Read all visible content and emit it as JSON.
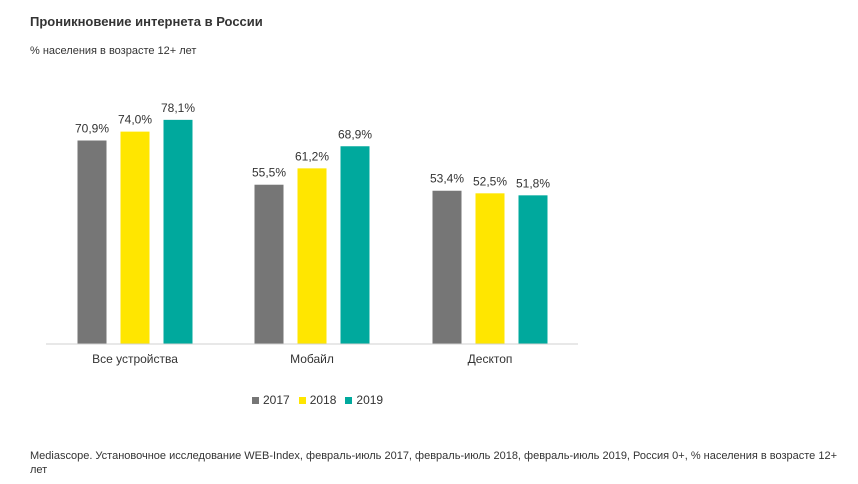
{
  "title": "Проникновение интернета в России",
  "subtitle": "% населения в возрасте 12+ лет",
  "source": "Mediascope. Установочное исследование WEB-Index, февраль-июль 2017, февраль-июль 2018, февраль-июль 2019, Россия 0+, % населения в возрасте 12+ лет",
  "chart_data": {
    "type": "bar",
    "categories": [
      "Все устройства",
      "Мобайл",
      "Десктоп"
    ],
    "series": [
      {
        "name": "2017",
        "color": "#767676",
        "values": [
          70.9,
          55.5,
          53.4
        ],
        "labels": [
          "70,9%",
          "55,5%",
          "53,4%"
        ]
      },
      {
        "name": "2018",
        "color": "#FFE600",
        "values": [
          74.0,
          61.2,
          52.5
        ],
        "labels": [
          "74,0%",
          "61,2%",
          "52,5%"
        ]
      },
      {
        "name": "2019",
        "color": "#00A99D",
        "values": [
          78.1,
          68.9,
          51.8
        ],
        "labels": [
          "78,1%",
          "68,9%",
          "51,8%"
        ]
      }
    ],
    "legend_position": "bottom",
    "grid": false,
    "ylim": [
      0,
      100
    ]
  }
}
